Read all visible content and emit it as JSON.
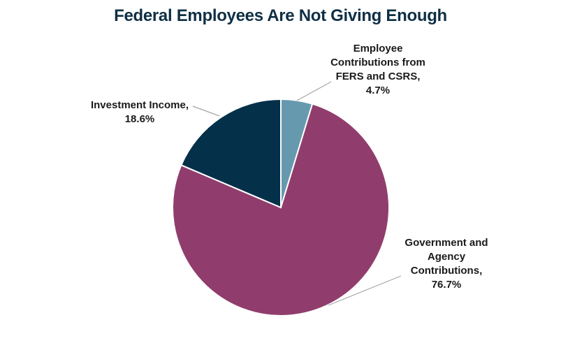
{
  "chart_data": {
    "type": "pie",
    "title": "Federal Employees Are Not Giving Enough",
    "start_angle_deg": 0,
    "direction": "clockwise",
    "slices": [
      {
        "name": "Employee Contributions from FERS and CSRS",
        "value": 4.7,
        "value_label": "4.7%",
        "label_lines": [
          "Employee",
          "Contributions from",
          "FERS and CSRS,",
          "4.7%"
        ],
        "color": "#6699ae",
        "label_side": "right"
      },
      {
        "name": "Government and Agency Contributions",
        "value": 76.7,
        "value_label": "76.7%",
        "label_lines": [
          "Government and",
          "Agency",
          "Contributions,",
          "76.7%"
        ],
        "color": "#903d6d",
        "label_side": "right"
      },
      {
        "name": "Investment Income",
        "value": 18.6,
        "value_label": "18.6%",
        "label_lines": [
          "Investment Income,",
          "18.6%"
        ],
        "color": "#05304a",
        "label_side": "left"
      }
    ],
    "legend": "none"
  }
}
